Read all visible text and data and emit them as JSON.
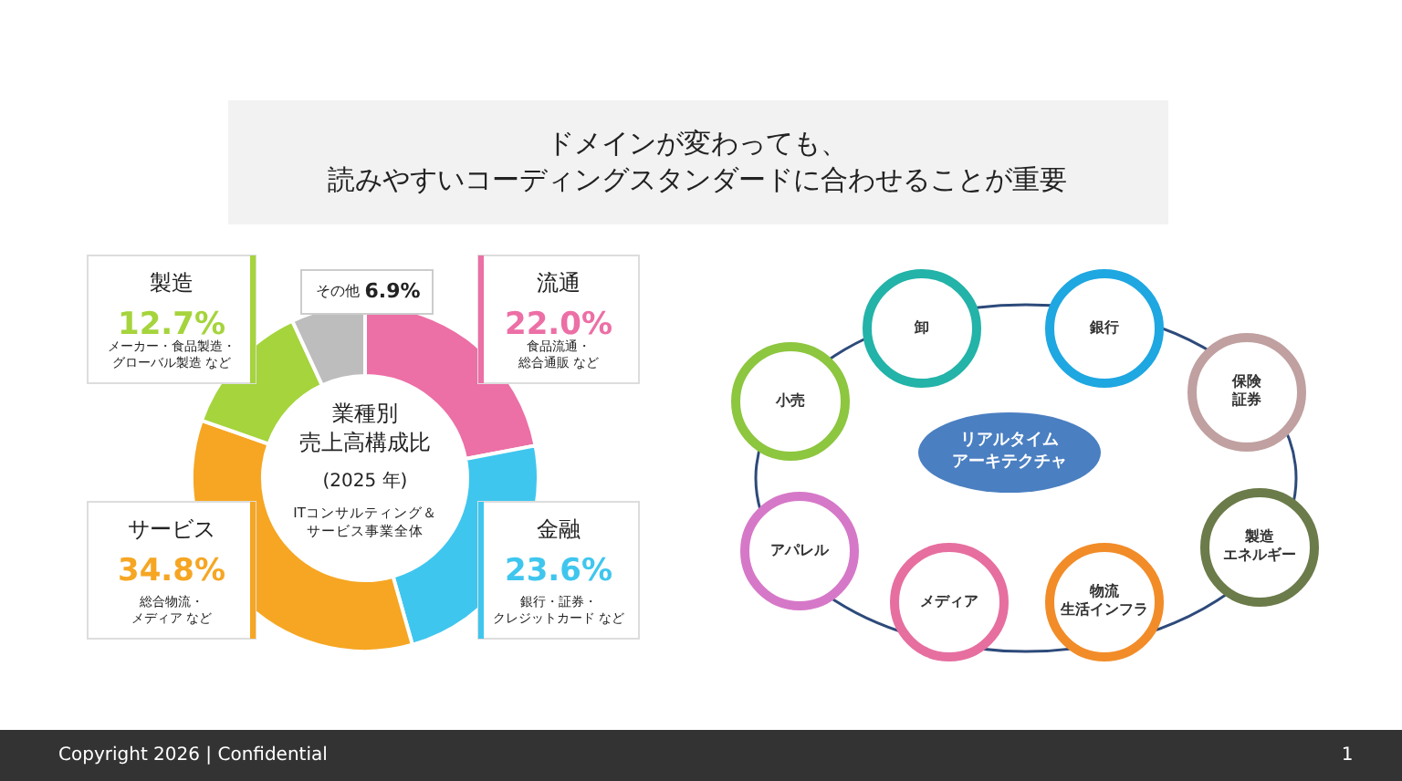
{
  "chart_data": [
    {
      "type": "donut",
      "title": "業種別売上高構成比",
      "subtitle": "(2025 年)",
      "categories": [
        "流通",
        "金融",
        "サービス",
        "製造",
        "その他"
      ],
      "values": [
        22.0,
        23.6,
        34.8,
        12.7,
        6.9
      ],
      "value_labels": [
        "22.0%",
        "23.6%",
        "34.8%",
        "12.7%",
        "6.9%"
      ],
      "colors": [
        "#ec6fa6",
        "#3fc6ee",
        "#f6a623",
        "#a5d43c",
        "#bdbdbd"
      ],
      "annotations": [
        "食品流通・総合通販 など",
        "銀行・証券・クレジットカード など",
        "総合物流・メディア など",
        "メーカー・食品製造・グローバル製造 など",
        "ITコンサルティング＆サービス事業全体",
        "ドメインが変わっても、読みやすいコーディングスタンダードに合わせることが重要",
        "Copyright 2026 | Confidential",
        "1"
      ]
    },
    {
      "type": "other",
      "title": "リアルタイムアーキテクチャ",
      "annotations": [
        "小売",
        "卸",
        "銀行",
        "保険証券",
        "製造エネルギー",
        "物流生活インフラ",
        "メディア",
        "アパレル"
      ]
    }
  ]
}
